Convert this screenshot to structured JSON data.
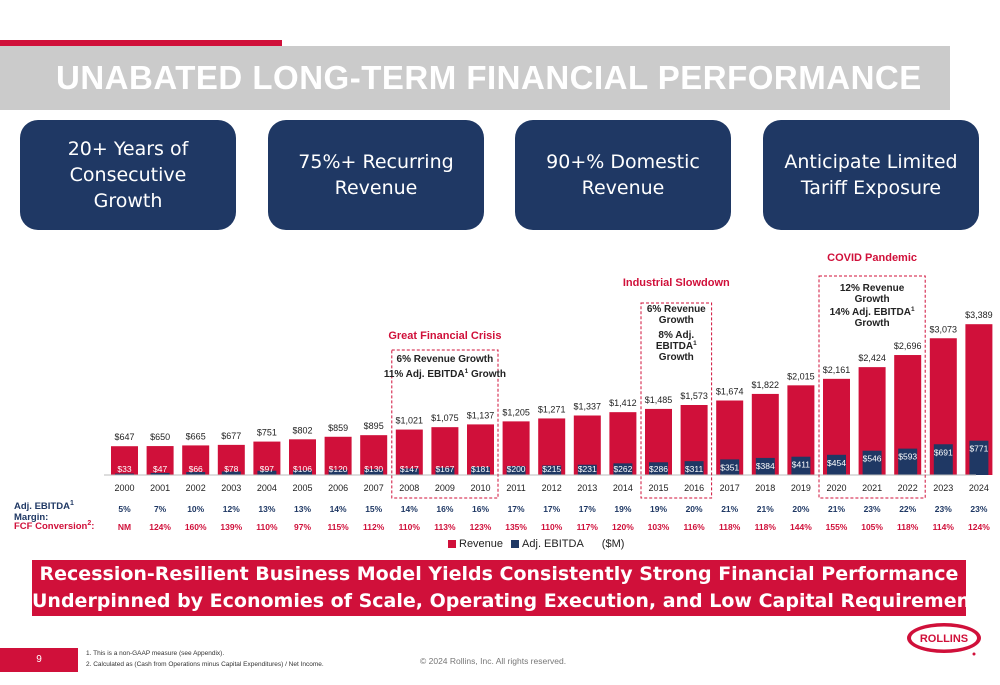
{
  "header": {
    "title": "UNABATED LONG-TERM FINANCIAL PERFORMANCE"
  },
  "highlights": [
    {
      "text": "20+ Years of\nConsecutive\nGrowth"
    },
    {
      "text": "75%+ Recurring\nRevenue"
    },
    {
      "text": "90+% Domestic\nRevenue"
    },
    {
      "text": "Anticipate Limited\nTariff Exposure"
    }
  ],
  "chart_data": {
    "type": "bar",
    "categories": [
      "2000",
      "2001",
      "2002",
      "2003",
      "2004",
      "2005",
      "2006",
      "2007",
      "2008",
      "2009",
      "2010",
      "2011",
      "2012",
      "2013",
      "2014",
      "2015",
      "2016",
      "2017",
      "2018",
      "2019",
      "2020",
      "2021",
      "2022",
      "2023",
      "2024"
    ],
    "series": [
      {
        "name": "Revenue",
        "color": "#d0103a",
        "values": [
          647,
          650,
          665,
          677,
          751,
          802,
          859,
          895,
          1021,
          1075,
          1137,
          1205,
          1271,
          1337,
          1412,
          1485,
          1573,
          1674,
          1822,
          2015,
          2161,
          2424,
          2696,
          3073,
          3389
        ],
        "labels": [
          "$647",
          "$650",
          "$665",
          "$677",
          "$751",
          "$802",
          "$859",
          "$895",
          "$1,021",
          "$1,075",
          "$1,137",
          "$1,205",
          "$1,271",
          "$1,337",
          "$1,412",
          "$1,485",
          "$1,573",
          "$1,674",
          "$1,822",
          "$2,015",
          "$2,161",
          "$2,424",
          "$2,696",
          "$3,073",
          "$3,389"
        ]
      },
      {
        "name": "Adj. EBITDA",
        "color": "#1f3864",
        "values": [
          33,
          47,
          66,
          78,
          97,
          106,
          120,
          130,
          147,
          167,
          181,
          200,
          215,
          231,
          262,
          286,
          311,
          351,
          384,
          411,
          454,
          546,
          593,
          691,
          771
        ],
        "labels": [
          "$33",
          "$47",
          "$66",
          "$78",
          "$97",
          "$106",
          "$120",
          "$130",
          "$147",
          "$167",
          "$181",
          "$200",
          "$215",
          "$231",
          "$262",
          "$286",
          "$311",
          "$351",
          "$384",
          "$411",
          "$454",
          "$546",
          "$593",
          "$691",
          "$771"
        ]
      }
    ],
    "unit_label": "($M)",
    "rows": [
      {
        "label": "Adj. EBITDA",
        "label_sup": "1",
        "label_line2": "Margin:",
        "color": "#1f3864",
        "values": [
          "5%",
          "7%",
          "10%",
          "12%",
          "13%",
          "13%",
          "14%",
          "15%",
          "14%",
          "16%",
          "16%",
          "17%",
          "17%",
          "17%",
          "19%",
          "19%",
          "20%",
          "21%",
          "21%",
          "20%",
          "21%",
          "23%",
          "22%",
          "23%",
          "23%"
        ]
      },
      {
        "label": "FCF Conversion",
        "label_sup": "2",
        "label_suffix": ":",
        "color": "#d0103a",
        "values": [
          "NM",
          "124%",
          "160%",
          "139%",
          "110%",
          "97%",
          "115%",
          "112%",
          "110%",
          "113%",
          "123%",
          "135%",
          "110%",
          "117%",
          "120%",
          "103%",
          "116%",
          "118%",
          "118%",
          "144%",
          "155%",
          "105%",
          "118%",
          "114%",
          "124%"
        ]
      }
    ],
    "annotations": [
      {
        "title": "Great Financial Crisis",
        "lines": [
          "6% Revenue Growth",
          "11% Adj. EBITDA|1| Growth"
        ],
        "years": [
          "2008",
          "2010"
        ]
      },
      {
        "title": "Industrial Slowdown",
        "lines": [
          "6% Revenue",
          "Growth",
          "8% Adj.",
          "EBITDA|1|",
          "Growth"
        ],
        "years": [
          "2015",
          "2016"
        ]
      },
      {
        "title": "COVID Pandemic",
        "lines": [
          "12% Revenue",
          "Growth",
          "14% Adj. EBITDA|1|",
          "Growth"
        ],
        "years": [
          "2020",
          "2022"
        ]
      }
    ],
    "legend_position": "bottom"
  },
  "banner": {
    "line1": "Recession-Resilient Business Model Yields Consistently Strong Financial Performance",
    "line2": "Underpinned by Economies of Scale, Operating Execution, and Low Capital Requirements"
  },
  "footer": {
    "page_number": "9",
    "footnote1": "1. This is a non-GAAP measure (see Appendix).",
    "footnote2": "2. Calculated as (Cash from Operations minus Capital Expenditures) / Net Income.",
    "copyright": "© 2024 Rollins, Inc. All rights reserved.",
    "logo_text": "ROLLINS"
  }
}
